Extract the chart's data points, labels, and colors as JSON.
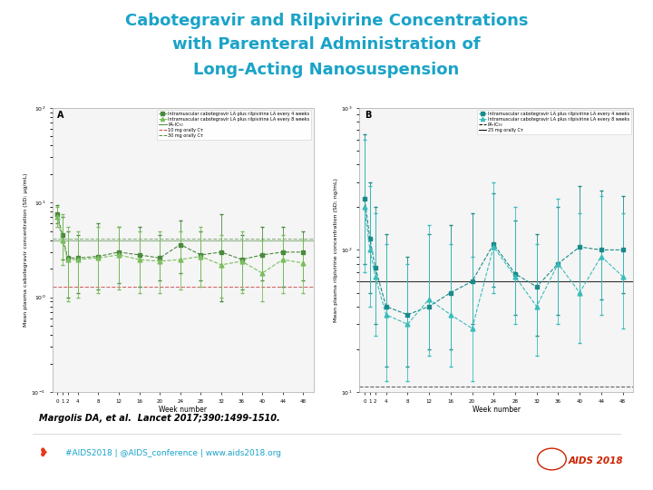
{
  "title_line1": "Cabotegravir and Rilpivirine Concentrations",
  "title_line2": "with Parenteral Administration of",
  "title_line3": "Long-Acting Nanosuspension",
  "title_color": "#1aa3c8",
  "bg_color": "#ffffff",
  "panel_bg": "#f5f5f5",
  "weeks": [
    0,
    1,
    2,
    4,
    8,
    12,
    16,
    20,
    24,
    28,
    32,
    36,
    40,
    44,
    48
  ],
  "cab_4wk_mean": [
    7.5,
    4.5,
    2.6,
    2.6,
    2.7,
    3.0,
    2.8,
    2.6,
    3.6,
    2.8,
    3.0,
    2.5,
    2.8,
    3.0,
    3.0
  ],
  "cab_4wk_lo": [
    6.0,
    2.5,
    1.0,
    1.1,
    1.2,
    1.4,
    1.3,
    1.5,
    1.8,
    1.5,
    0.9,
    1.2,
    1.5,
    1.3,
    1.5
  ],
  "cab_4wk_hi": [
    9.5,
    7.0,
    5.0,
    4.5,
    6.0,
    5.5,
    5.5,
    4.5,
    6.5,
    5.0,
    7.5,
    4.5,
    5.5,
    5.5,
    5.0
  ],
  "cab_8wk_mean": [
    7.0,
    4.0,
    2.5,
    2.5,
    2.6,
    2.8,
    2.5,
    2.4,
    2.5,
    2.7,
    2.2,
    2.4,
    1.8,
    2.5,
    2.3
  ],
  "cab_8wk_lo": [
    5.5,
    2.2,
    0.9,
    1.0,
    1.1,
    1.2,
    1.1,
    1.1,
    1.2,
    1.3,
    1.0,
    1.1,
    0.9,
    1.1,
    1.1
  ],
  "cab_8wk_hi": [
    9.0,
    7.5,
    5.5,
    5.0,
    5.5,
    5.5,
    5.0,
    5.0,
    5.0,
    5.5,
    4.5,
    5.0,
    4.0,
    4.5,
    4.0
  ],
  "cab_PA_IC50": 4.0,
  "cab_10mg_oral": 1.3,
  "cab_30mg_oral": 4.2,
  "cab_ylim": [
    0.1,
    100
  ],
  "rpv_4wk_mean": [
    230,
    120,
    75,
    40,
    35,
    40,
    50,
    60,
    110,
    68,
    55,
    80,
    105,
    100,
    100
  ],
  "rpv_4wk_lo": [
    80,
    50,
    30,
    15,
    15,
    20,
    20,
    30,
    55,
    35,
    25,
    35,
    50,
    45,
    50
  ],
  "rpv_4wk_hi": [
    650,
    300,
    200,
    130,
    90,
    130,
    150,
    180,
    250,
    160,
    130,
    200,
    280,
    260,
    240
  ],
  "rpv_8wk_mean": [
    200,
    100,
    65,
    35,
    30,
    45,
    35,
    28,
    105,
    65,
    40,
    80,
    50,
    90,
    65
  ],
  "rpv_8wk_lo": [
    70,
    40,
    25,
    12,
    12,
    18,
    15,
    12,
    50,
    30,
    18,
    30,
    22,
    35,
    28
  ],
  "rpv_8wk_hi": [
    600,
    280,
    180,
    110,
    80,
    150,
    110,
    90,
    300,
    200,
    110,
    230,
    180,
    240,
    180
  ],
  "rpv_PA_IC50": 11,
  "rpv_25mg_oral": 60,
  "rpv_ylim": [
    10,
    1000
  ],
  "green_dark": "#4a8a3c",
  "green_light": "#7abf5e",
  "teal_dark": "#1a8a8a",
  "teal_light": "#3abcbc",
  "footer_text": "Margolis DA, et al.  Lancet 2017;390:1499-1510.",
  "hashtag_text": "#AIDS2018 | @AIDS_conference | www.aids2018.org"
}
